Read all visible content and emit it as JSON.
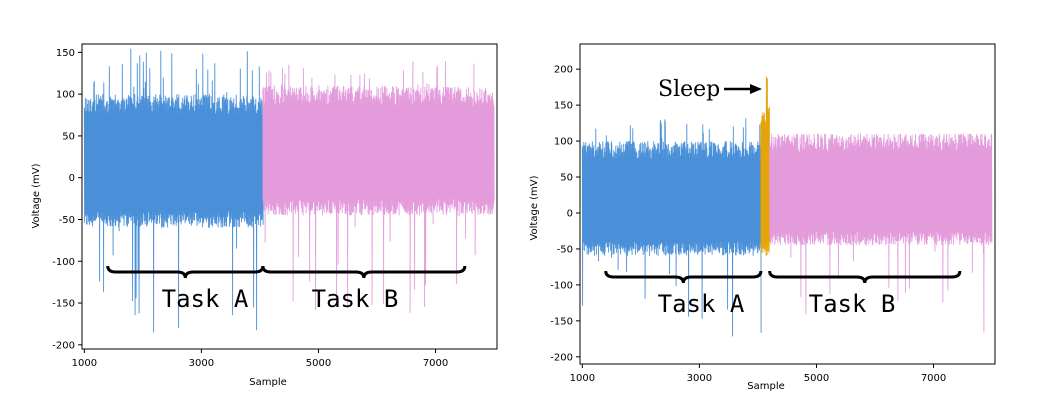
{
  "chart_data": [
    {
      "type": "line",
      "xlabel": "Sample",
      "ylabel": "Voltage (mV)",
      "xlim": [
        960,
        8050
      ],
      "ylim": [
        -205,
        160
      ],
      "xticks": [
        1000,
        3000,
        5000,
        7000
      ],
      "yticks": [
        150,
        100,
        50,
        0,
        -50,
        -100,
        -150,
        -200
      ],
      "series": [
        {
          "color": "#4a90d9",
          "x_range": [
            1000,
            4050
          ],
          "typical_range": [
            -60,
            100
          ],
          "peak_max": 155,
          "peak_min": -190
        },
        {
          "color": "#e39bdc",
          "x_range": [
            4050,
            8000
          ],
          "typical_range": [
            -45,
            110
          ],
          "peak_max": 140,
          "peak_min": -185
        }
      ],
      "annotations": [
        {
          "text": "Task A",
          "x_range": [
            1400,
            4050
          ]
        },
        {
          "text": "Task B",
          "x_range": [
            4050,
            7500
          ]
        }
      ]
    },
    {
      "type": "line",
      "xlabel": "Sample",
      "ylabel": "Voltage (mV)",
      "xlim": [
        960,
        8050
      ],
      "ylim": [
        -210,
        235
      ],
      "xticks": [
        1000,
        3000,
        5000,
        7000
      ],
      "yticks": [
        200,
        150,
        100,
        50,
        0,
        -50,
        -100,
        -150,
        -200
      ],
      "series": [
        {
          "color": "#4a90d9",
          "x_range": [
            1000,
            4050
          ],
          "typical_range": [
            -60,
            100
          ],
          "peak_max": 135,
          "peak_min": -188
        },
        {
          "color": "#e5a50a",
          "x_range": [
            4050,
            4200
          ],
          "typical_range": [
            -60,
            150
          ],
          "peak_max": 220,
          "peak_min": -150
        },
        {
          "color": "#e39bdc",
          "x_range": [
            4200,
            8000
          ],
          "typical_range": [
            -45,
            110
          ],
          "peak_max": 110,
          "peak_min": -180
        }
      ],
      "annotations": [
        {
          "text": "Task A",
          "x_range": [
            1400,
            4050
          ]
        },
        {
          "text": "Task B",
          "x_range": [
            4200,
            7450
          ]
        },
        {
          "text": "Sleep",
          "arrow_to_x": 4100
        }
      ]
    }
  ]
}
